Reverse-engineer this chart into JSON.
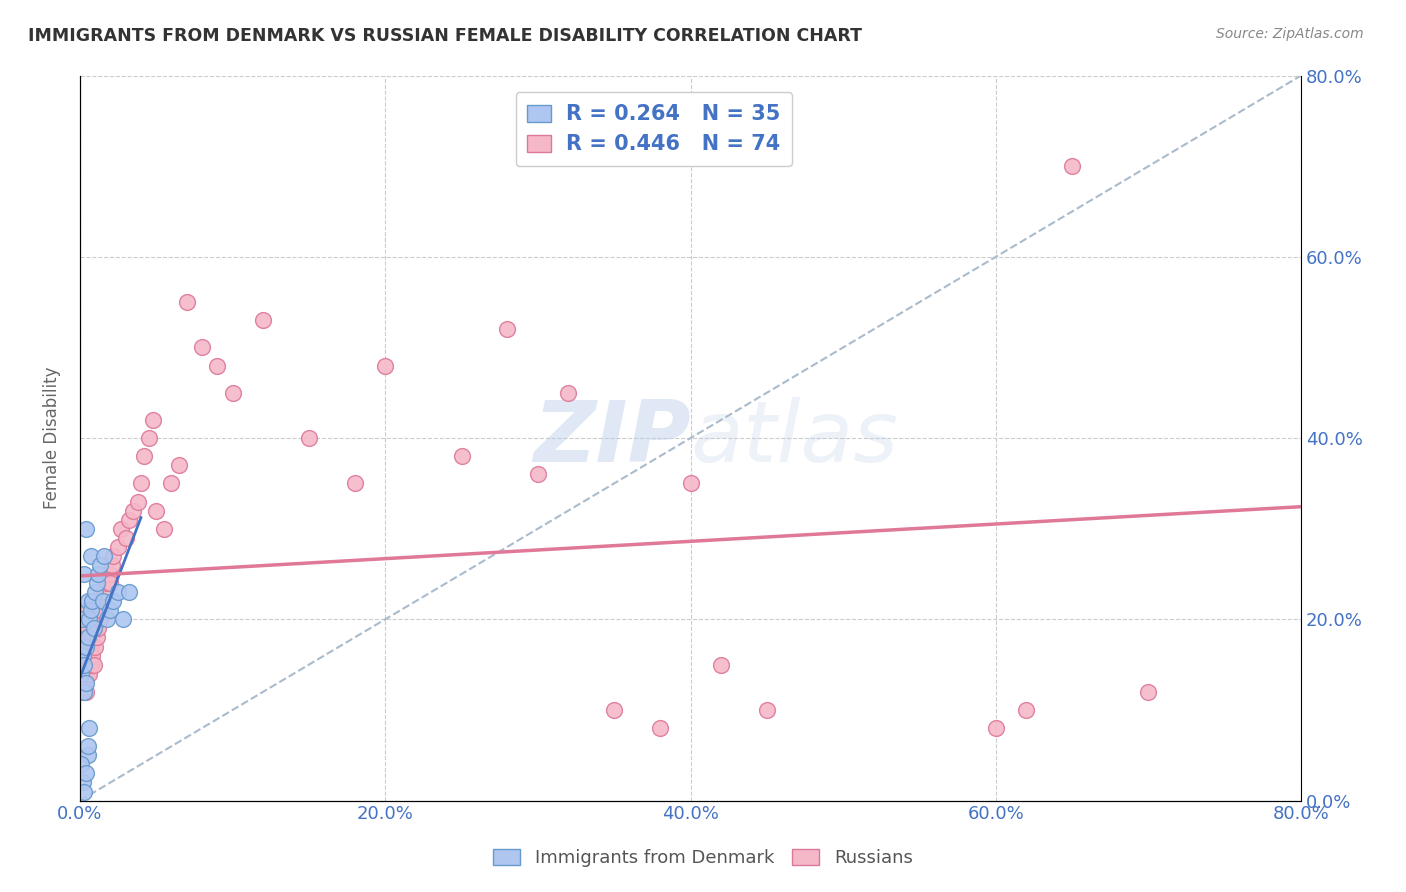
{
  "title": "IMMIGRANTS FROM DENMARK VS RUSSIAN FEMALE DISABILITY CORRELATION CHART",
  "source": "Source: ZipAtlas.com",
  "ylabel": "Female Disability",
  "xlim": [
    0.0,
    0.8
  ],
  "ylim": [
    0.0,
    0.8
  ],
  "xtick_labels": [
    "0.0%",
    "20.0%",
    "40.0%",
    "60.0%",
    "80.0%"
  ],
  "xtick_vals": [
    0.0,
    0.2,
    0.4,
    0.6,
    0.8
  ],
  "ytick_labels": [
    "0.0%",
    "20.0%",
    "40.0%",
    "60.0%",
    "80.0%"
  ],
  "ytick_vals": [
    0.0,
    0.2,
    0.4,
    0.6,
    0.8
  ],
  "background_color": "#ffffff",
  "grid_color": "#cccccc",
  "denmark_color": "#aec6f0",
  "denmark_edge_color": "#6699cc",
  "russia_color": "#f5b8c8",
  "russia_edge_color": "#dd7799",
  "denmark_R": 0.264,
  "denmark_N": 35,
  "russia_R": 0.446,
  "russia_N": 74,
  "legend_text_color": "#4472c4",
  "denmark_trendline_color": "#4472c4",
  "russia_trendline_color": "#e07898",
  "ref_line_color": "#aabbcc",
  "denmark_scatter_x": [
    0.001,
    0.002,
    0.002,
    0.003,
    0.003,
    0.003,
    0.004,
    0.004,
    0.004,
    0.005,
    0.005,
    0.005,
    0.006,
    0.006,
    0.007,
    0.007,
    0.008,
    0.009,
    0.01,
    0.011,
    0.012,
    0.013,
    0.015,
    0.016,
    0.018,
    0.02,
    0.022,
    0.025,
    0.028,
    0.032,
    0.001,
    0.002,
    0.003,
    0.004,
    0.005
  ],
  "denmark_scatter_y": [
    0.14,
    0.16,
    0.2,
    0.12,
    0.15,
    0.25,
    0.13,
    0.17,
    0.3,
    0.18,
    0.22,
    0.05,
    0.2,
    0.08,
    0.21,
    0.27,
    0.22,
    0.19,
    0.23,
    0.24,
    0.25,
    0.26,
    0.22,
    0.27,
    0.2,
    0.21,
    0.22,
    0.23,
    0.2,
    0.23,
    0.04,
    0.02,
    0.01,
    0.03,
    0.06
  ],
  "russia_scatter_x": [
    0.001,
    0.001,
    0.002,
    0.002,
    0.002,
    0.003,
    0.003,
    0.003,
    0.004,
    0.004,
    0.004,
    0.004,
    0.005,
    0.005,
    0.005,
    0.005,
    0.006,
    0.006,
    0.006,
    0.007,
    0.007,
    0.007,
    0.008,
    0.008,
    0.009,
    0.009,
    0.01,
    0.01,
    0.011,
    0.012,
    0.013,
    0.014,
    0.015,
    0.016,
    0.018,
    0.019,
    0.02,
    0.021,
    0.022,
    0.025,
    0.027,
    0.03,
    0.032,
    0.035,
    0.038,
    0.04,
    0.042,
    0.045,
    0.048,
    0.05,
    0.055,
    0.06,
    0.065,
    0.07,
    0.08,
    0.09,
    0.1,
    0.12,
    0.15,
    0.18,
    0.2,
    0.25,
    0.28,
    0.3,
    0.32,
    0.35,
    0.38,
    0.4,
    0.42,
    0.45,
    0.6,
    0.62,
    0.65,
    0.7
  ],
  "russia_scatter_y": [
    0.14,
    0.16,
    0.12,
    0.15,
    0.17,
    0.13,
    0.16,
    0.19,
    0.14,
    0.18,
    0.2,
    0.12,
    0.15,
    0.17,
    0.19,
    0.21,
    0.14,
    0.16,
    0.18,
    0.15,
    0.17,
    0.2,
    0.16,
    0.18,
    0.15,
    0.19,
    0.17,
    0.2,
    0.18,
    0.19,
    0.2,
    0.21,
    0.22,
    0.23,
    0.24,
    0.25,
    0.24,
    0.26,
    0.27,
    0.28,
    0.3,
    0.29,
    0.31,
    0.32,
    0.33,
    0.35,
    0.38,
    0.4,
    0.42,
    0.32,
    0.3,
    0.35,
    0.37,
    0.55,
    0.5,
    0.48,
    0.45,
    0.53,
    0.4,
    0.35,
    0.48,
    0.38,
    0.52,
    0.36,
    0.45,
    0.1,
    0.08,
    0.35,
    0.15,
    0.1,
    0.08,
    0.1,
    0.7,
    0.12
  ]
}
